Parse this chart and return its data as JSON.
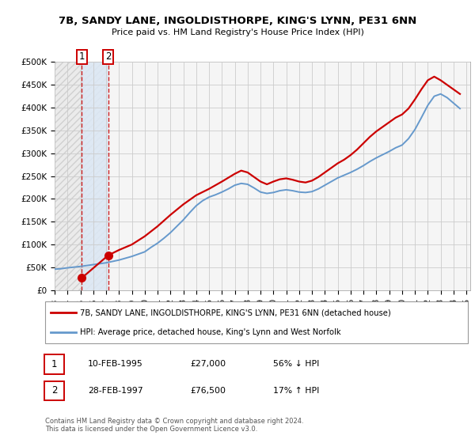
{
  "title": "7B, SANDY LANE, INGOLDISTHORPE, KING'S LYNN, PE31 6NN",
  "subtitle": "Price paid vs. HM Land Registry's House Price Index (HPI)",
  "legend_line1": "7B, SANDY LANE, INGOLDISTHORPE, KING'S LYNN, PE31 6NN (detached house)",
  "legend_line2": "HPI: Average price, detached house, King's Lynn and West Norfolk",
  "footnote": "Contains HM Land Registry data © Crown copyright and database right 2024.\nThis data is licensed under the Open Government Licence v3.0.",
  "purchase_color": "#cc0000",
  "hpi_color": "#6699cc",
  "grid_color": "#cccccc",
  "ylim": [
    0,
    500000
  ],
  "yticks": [
    0,
    50000,
    100000,
    150000,
    200000,
    250000,
    300000,
    350000,
    400000,
    450000,
    500000
  ],
  "ytick_labels": [
    "£0",
    "£50K",
    "£100K",
    "£150K",
    "£200K",
    "£250K",
    "£300K",
    "£350K",
    "£400K",
    "£450K",
    "£500K"
  ],
  "purchase_points": [
    {
      "year": 1995.12,
      "price": 27000,
      "label": "1"
    },
    {
      "year": 1997.17,
      "price": 76500,
      "label": "2"
    }
  ],
  "hpi_years": [
    1993.0,
    1993.5,
    1994.0,
    1994.5,
    1995.0,
    1995.5,
    1996.0,
    1996.5,
    1997.0,
    1997.5,
    1998.0,
    1998.5,
    1999.0,
    1999.5,
    2000.0,
    2000.5,
    2001.0,
    2001.5,
    2002.0,
    2002.5,
    2003.0,
    2003.5,
    2004.0,
    2004.5,
    2005.0,
    2005.5,
    2006.0,
    2006.5,
    2007.0,
    2007.5,
    2008.0,
    2008.5,
    2009.0,
    2009.5,
    2010.0,
    2010.5,
    2011.0,
    2011.5,
    2012.0,
    2012.5,
    2013.0,
    2013.5,
    2014.0,
    2014.5,
    2015.0,
    2015.5,
    2016.0,
    2016.5,
    2017.0,
    2017.5,
    2018.0,
    2018.5,
    2019.0,
    2019.5,
    2020.0,
    2020.5,
    2021.0,
    2021.5,
    2022.0,
    2022.5,
    2023.0,
    2023.5,
    2024.0,
    2024.5
  ],
  "hpi_values": [
    46000,
    47000,
    49000,
    50500,
    52000,
    54000,
    56000,
    58000,
    60000,
    63000,
    66000,
    70000,
    74000,
    79000,
    84000,
    94000,
    103000,
    114000,
    126000,
    140000,
    154000,
    170000,
    185000,
    196000,
    204000,
    209000,
    215000,
    222000,
    230000,
    234000,
    232000,
    224000,
    215000,
    212000,
    214000,
    218000,
    220000,
    218000,
    215000,
    214000,
    216000,
    222000,
    230000,
    238000,
    246000,
    252000,
    258000,
    265000,
    273000,
    282000,
    290000,
    297000,
    304000,
    312000,
    318000,
    332000,
    352000,
    378000,
    405000,
    425000,
    430000,
    422000,
    410000,
    398000
  ],
  "house_years": [
    1995.12,
    1997.17,
    1998.0,
    1999.0,
    2000.0,
    2001.0,
    2002.0,
    2003.0,
    2004.0,
    2005.0,
    2006.0,
    2007.0,
    2007.5,
    2008.0,
    2008.5,
    2009.0,
    2009.5,
    2010.0,
    2010.5,
    2011.0,
    2011.5,
    2012.0,
    2012.5,
    2013.0,
    2013.5,
    2014.0,
    2014.5,
    2015.0,
    2015.5,
    2016.0,
    2016.5,
    2017.0,
    2017.5,
    2018.0,
    2018.5,
    2019.0,
    2019.5,
    2020.0,
    2020.5,
    2021.0,
    2021.5,
    2022.0,
    2022.5,
    2023.0,
    2023.5,
    2024.0,
    2024.5
  ],
  "house_values": [
    27000,
    76500,
    88000,
    100000,
    118000,
    140000,
    165000,
    188000,
    208000,
    222000,
    238000,
    255000,
    262000,
    258000,
    248000,
    238000,
    232000,
    238000,
    243000,
    245000,
    242000,
    238000,
    236000,
    240000,
    248000,
    258000,
    268000,
    278000,
    286000,
    296000,
    308000,
    322000,
    336000,
    348000,
    358000,
    368000,
    378000,
    385000,
    398000,
    418000,
    440000,
    460000,
    468000,
    460000,
    450000,
    440000,
    430000
  ],
  "xlim_start": 1993.0,
  "xlim_end": 2025.3,
  "row1": {
    "label": "1",
    "date": "10-FEB-1995",
    "price": "£27,000",
    "hpi": "56% ↓ HPI"
  },
  "row2": {
    "label": "2",
    "date": "28-FEB-1997",
    "price": "£76,500",
    "hpi": "17% ↑ HPI"
  }
}
